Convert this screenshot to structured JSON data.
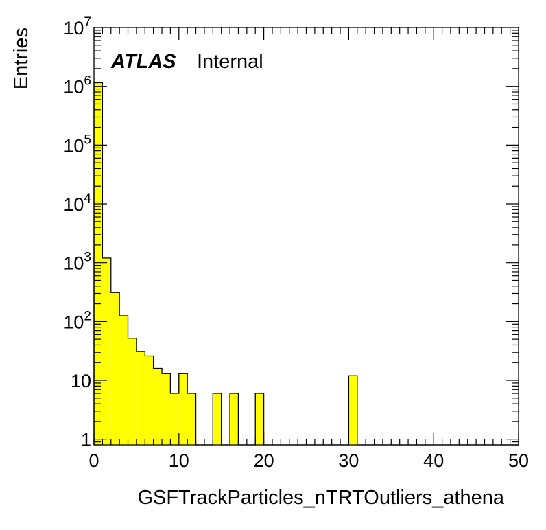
{
  "chart_data": {
    "type": "bar",
    "subtype": "histogram",
    "title": "",
    "xlabel": "GSFTrackParticles_nTRTOutliers_athena",
    "ylabel": "Entries",
    "annotation": {
      "experiment": "ATLAS",
      "status": "Internal"
    },
    "xlim": [
      0,
      50
    ],
    "ylim": [
      0.8,
      10000000
    ],
    "y_scale": "log",
    "bin_width": 1,
    "x_ticks": [
      "0",
      "10",
      "20",
      "30",
      "40",
      "50"
    ],
    "y_ticks": [
      {
        "base": "1",
        "exp": ""
      },
      {
        "base": "10",
        "exp": ""
      },
      {
        "base": "10",
        "exp": "2"
      },
      {
        "base": "10",
        "exp": "3"
      },
      {
        "base": "10",
        "exp": "4"
      },
      {
        "base": "10",
        "exp": "5"
      },
      {
        "base": "10",
        "exp": "6"
      },
      {
        "base": "10",
        "exp": "7"
      }
    ],
    "bins": [
      {
        "x": 0,
        "value": 1150000
      },
      {
        "x": 1,
        "value": 1200
      },
      {
        "x": 2,
        "value": 310
      },
      {
        "x": 3,
        "value": 125
      },
      {
        "x": 4,
        "value": 52
      },
      {
        "x": 5,
        "value": 31
      },
      {
        "x": 6,
        "value": 26
      },
      {
        "x": 7,
        "value": 16
      },
      {
        "x": 8,
        "value": 13
      },
      {
        "x": 9,
        "value": 6
      },
      {
        "x": 10,
        "value": 13
      },
      {
        "x": 11,
        "value": 6
      },
      {
        "x": 12,
        "value": 0
      },
      {
        "x": 13,
        "value": 0
      },
      {
        "x": 14,
        "value": 6
      },
      {
        "x": 15,
        "value": 0
      },
      {
        "x": 16,
        "value": 6
      },
      {
        "x": 17,
        "value": 0
      },
      {
        "x": 18,
        "value": 0
      },
      {
        "x": 19,
        "value": 6
      },
      {
        "x": 30,
        "value": 12
      }
    ],
    "fill_color": "#ffff00",
    "line_color": "#000000",
    "grid": false,
    "legend": "none"
  }
}
